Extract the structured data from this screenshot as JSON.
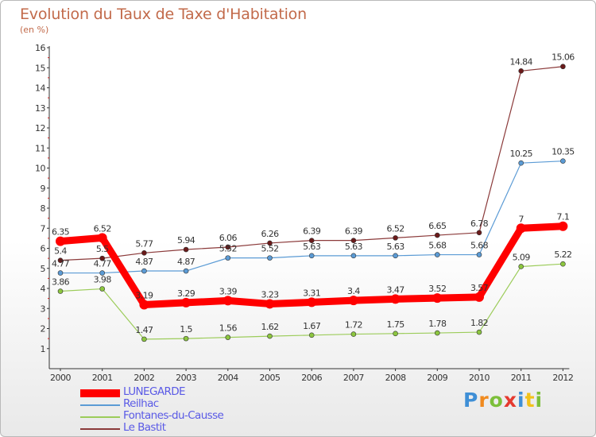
{
  "header": {
    "title": "Evolution du Taux de Taxe d'Habitation",
    "subtitle": "(en %)"
  },
  "chart_data": {
    "type": "line",
    "title": "Evolution du Taux de Taxe d'Habitation",
    "subtitle": "(en %)",
    "xlabel": "",
    "ylabel": "",
    "x": [
      "2000",
      "2001",
      "2002",
      "2003",
      "2004",
      "2005",
      "2006",
      "2007",
      "2008",
      "2009",
      "2010",
      "2011",
      "2012"
    ],
    "ylim": [
      0,
      16
    ],
    "yticks": [
      "1",
      "2",
      "3",
      "4",
      "5",
      "6",
      "7",
      "8",
      "9",
      "10",
      "11",
      "12",
      "13",
      "14",
      "15",
      "16"
    ],
    "grid": false,
    "legend_position": "bottom-left",
    "series": [
      {
        "name": "LUNEGARDE",
        "color": "#ff0000",
        "marker": "#ff0000",
        "values": [
          6.35,
          6.52,
          3.19,
          3.29,
          3.39,
          3.23,
          3.31,
          3.4,
          3.47,
          3.52,
          3.57,
          7,
          7.1
        ],
        "labels": [
          "6.35",
          "6.52",
          "3.19",
          "3.29",
          "3.39",
          "3.23",
          "3.31",
          "3.4",
          "3.47",
          "3.52",
          "3.57",
          "7",
          "7.1"
        ]
      },
      {
        "name": "Reilhac",
        "color": "#5b9bd5",
        "marker": "#5b9bd5",
        "values": [
          4.77,
          4.77,
          4.87,
          4.87,
          5.52,
          5.52,
          5.63,
          5.63,
          5.63,
          5.68,
          5.68,
          10.25,
          10.35
        ],
        "labels": [
          "4.77",
          "4.77",
          "4.87",
          "4.87",
          "5.52",
          "5.52",
          "5.63",
          "5.63",
          "5.63",
          "5.68",
          "5.68",
          "10.25",
          "10.35"
        ]
      },
      {
        "name": "Fontanes-du-Causse",
        "color": "#9ccc5a",
        "marker": "#8cc63f",
        "values": [
          3.86,
          3.98,
          1.47,
          1.5,
          1.56,
          1.62,
          1.67,
          1.72,
          1.75,
          1.78,
          1.82,
          5.09,
          5.22
        ],
        "labels": [
          "3.86",
          "3.98",
          "1.47",
          "1.5",
          "1.56",
          "1.62",
          "1.67",
          "1.72",
          "1.75",
          "1.78",
          "1.82",
          "5.09",
          "5.22"
        ]
      },
      {
        "name": "Le Bastit",
        "color": "#8b3a3a",
        "marker": "#6b1a1a",
        "values": [
          5.4,
          5.5,
          5.77,
          5.94,
          6.06,
          6.26,
          6.39,
          6.39,
          6.52,
          6.65,
          6.78,
          14.84,
          15.06
        ],
        "labels": [
          "5.4",
          "5.5",
          "5.77",
          "5.94",
          "6.06",
          "6.26",
          "6.39",
          "6.39",
          "6.52",
          "6.65",
          "6.78",
          "14.84",
          "15.06"
        ]
      }
    ]
  },
  "legend": {
    "items": [
      {
        "label": "LUNEGARDE",
        "color": "#ff0000"
      },
      {
        "label": "Reilhac",
        "color": "#5b9bd5"
      },
      {
        "label": "Fontanes-du-Causse",
        "color": "#9ccc5a"
      },
      {
        "label": "Le Bastit",
        "color": "#8b3a3a"
      }
    ]
  },
  "logo": {
    "text": "Proxiti",
    "letters": [
      "P",
      "r",
      "o",
      "x",
      "i",
      "t",
      "i"
    ],
    "colors": [
      "#3f8fd6",
      "#f08a1e",
      "#7cbf3a",
      "#e53a2f",
      "#3f8fd6",
      "#f2c21b",
      "#7cbf3a"
    ]
  }
}
